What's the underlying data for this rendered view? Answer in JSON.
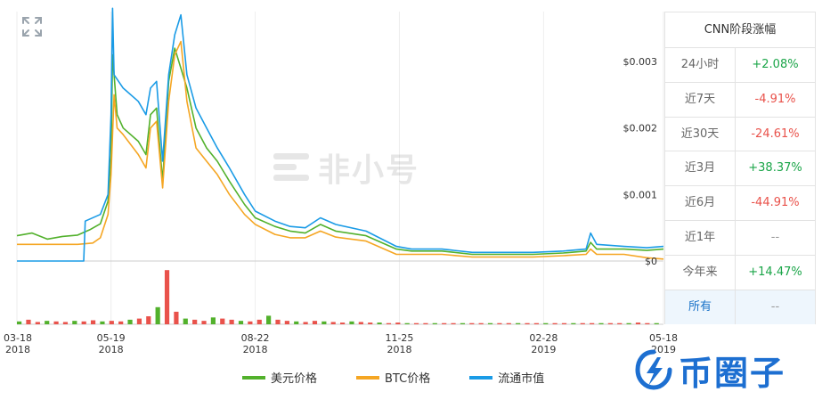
{
  "chart_data": {
    "type": "line",
    "y_ticks": [
      "$0.003",
      "$0.002",
      "$0.001",
      "$0"
    ],
    "y_tick_values": [
      0.003,
      0.002,
      0.001,
      0
    ],
    "ylim": [
      0,
      0.00375
    ],
    "xlim_days": [
      0,
      426
    ],
    "x_ticks": [
      {
        "top": "03-18",
        "bottom": "2018",
        "day": 0
      },
      {
        "top": "05-19",
        "bottom": "2018",
        "day": 62
      },
      {
        "top": "08-22",
        "bottom": "2018",
        "day": 157
      },
      {
        "top": "11-25",
        "bottom": "2018",
        "day": 252
      },
      {
        "top": "02-28",
        "bottom": "2019",
        "day": 347
      },
      {
        "top": "05-18",
        "bottom": "2019",
        "day": 426
      }
    ],
    "series": [
      {
        "name": "美元价格",
        "color": "#52b12c",
        "points": [
          [
            0,
            0.00038
          ],
          [
            10,
            0.00042
          ],
          [
            20,
            0.00033
          ],
          [
            30,
            0.00037
          ],
          [
            40,
            0.00039
          ],
          [
            48,
            0.00047
          ],
          [
            55,
            0.00056
          ],
          [
            60,
            0.0009
          ],
          [
            62,
            0.0016
          ],
          [
            63,
            0.0031
          ],
          [
            66,
            0.0022
          ],
          [
            70,
            0.002
          ],
          [
            80,
            0.0018
          ],
          [
            85,
            0.0016
          ],
          [
            88,
            0.0022
          ],
          [
            92,
            0.0023
          ],
          [
            96,
            0.0012
          ],
          [
            100,
            0.0027
          ],
          [
            104,
            0.0032
          ],
          [
            108,
            0.0029
          ],
          [
            112,
            0.0026
          ],
          [
            118,
            0.002
          ],
          [
            125,
            0.0017
          ],
          [
            132,
            0.0015
          ],
          [
            140,
            0.0012
          ],
          [
            150,
            0.00085
          ],
          [
            157,
            0.00065
          ],
          [
            170,
            0.00052
          ],
          [
            180,
            0.00045
          ],
          [
            190,
            0.00042
          ],
          [
            200,
            0.00055
          ],
          [
            210,
            0.00045
          ],
          [
            230,
            0.00038
          ],
          [
            250,
            0.00018
          ],
          [
            260,
            0.00015
          ],
          [
            280,
            0.00015
          ],
          [
            300,
            0.0001
          ],
          [
            320,
            0.0001
          ],
          [
            340,
            0.0001
          ],
          [
            360,
            0.00012
          ],
          [
            375,
            0.00015
          ],
          [
            378,
            0.00028
          ],
          [
            382,
            0.00018
          ],
          [
            400,
            0.00018
          ],
          [
            415,
            0.00016
          ],
          [
            426,
            0.00018
          ]
        ]
      },
      {
        "name": "BTC价格",
        "color": "#f5a623",
        "points": [
          [
            0,
            0.00025
          ],
          [
            20,
            0.00025
          ],
          [
            40,
            0.00025
          ],
          [
            50,
            0.00027
          ],
          [
            55,
            0.00035
          ],
          [
            60,
            0.0007
          ],
          [
            62,
            0.0013
          ],
          [
            64,
            0.0025
          ],
          [
            66,
            0.002
          ],
          [
            70,
            0.0019
          ],
          [
            80,
            0.0016
          ],
          [
            85,
            0.0014
          ],
          [
            88,
            0.002
          ],
          [
            92,
            0.0021
          ],
          [
            96,
            0.0011
          ],
          [
            100,
            0.0024
          ],
          [
            104,
            0.0031
          ],
          [
            108,
            0.0033
          ],
          [
            112,
            0.0024
          ],
          [
            118,
            0.0017
          ],
          [
            125,
            0.0015
          ],
          [
            132,
            0.0013
          ],
          [
            140,
            0.001
          ],
          [
            150,
            0.0007
          ],
          [
            157,
            0.00055
          ],
          [
            170,
            0.0004
          ],
          [
            180,
            0.00035
          ],
          [
            190,
            0.00035
          ],
          [
            200,
            0.00045
          ],
          [
            210,
            0.00036
          ],
          [
            230,
            0.0003
          ],
          [
            250,
            0.0001
          ],
          [
            260,
            0.0001
          ],
          [
            280,
            0.0001
          ],
          [
            300,
            6e-05
          ],
          [
            320,
            6e-05
          ],
          [
            340,
            6e-05
          ],
          [
            360,
            8e-05
          ],
          [
            375,
            0.0001
          ],
          [
            378,
            0.00018
          ],
          [
            382,
            0.0001
          ],
          [
            400,
            0.0001
          ],
          [
            415,
            5e-05
          ],
          [
            426,
            3e-05
          ]
        ]
      },
      {
        "name": "流通市值",
        "color": "#1a9be6",
        "points": [
          [
            0,
            0.0
          ],
          [
            20,
            0.0
          ],
          [
            40,
            0.0
          ],
          [
            44,
            0.0
          ],
          [
            45,
            0.0006
          ],
          [
            55,
            0.0007
          ],
          [
            60,
            0.001
          ],
          [
            62,
            0.0022
          ],
          [
            63,
            0.0038
          ],
          [
            64,
            0.0028
          ],
          [
            70,
            0.0026
          ],
          [
            80,
            0.0024
          ],
          [
            85,
            0.0022
          ],
          [
            88,
            0.0026
          ],
          [
            92,
            0.0027
          ],
          [
            96,
            0.0015
          ],
          [
            100,
            0.0028
          ],
          [
            104,
            0.0034
          ],
          [
            108,
            0.0037
          ],
          [
            112,
            0.0028
          ],
          [
            118,
            0.0023
          ],
          [
            125,
            0.002
          ],
          [
            132,
            0.0017
          ],
          [
            140,
            0.0014
          ],
          [
            150,
            0.001
          ],
          [
            157,
            0.00075
          ],
          [
            170,
            0.0006
          ],
          [
            180,
            0.00052
          ],
          [
            190,
            0.0005
          ],
          [
            200,
            0.00065
          ],
          [
            210,
            0.00055
          ],
          [
            230,
            0.00045
          ],
          [
            250,
            0.00022
          ],
          [
            260,
            0.00018
          ],
          [
            280,
            0.00018
          ],
          [
            300,
            0.00013
          ],
          [
            320,
            0.00013
          ],
          [
            340,
            0.00013
          ],
          [
            360,
            0.00015
          ],
          [
            375,
            0.00018
          ],
          [
            378,
            0.00042
          ],
          [
            382,
            0.00025
          ],
          [
            400,
            0.00022
          ],
          [
            415,
            0.0002
          ],
          [
            426,
            0.00022
          ]
        ]
      }
    ],
    "volume_bars": [
      0.05,
      0.08,
      0.04,
      0.06,
      0.05,
      0.04,
      0.06,
      0.05,
      0.07,
      0.05,
      0.06,
      0.05,
      0.08,
      0.1,
      0.14,
      0.3,
      0.95,
      0.22,
      0.1,
      0.08,
      0.06,
      0.12,
      0.1,
      0.08,
      0.06,
      0.05,
      0.08,
      0.15,
      0.08,
      0.06,
      0.05,
      0.04,
      0.06,
      0.05,
      0.04,
      0.03,
      0.05,
      0.04,
      0.03,
      0.03,
      0.02,
      0.03,
      0.02,
      0.02,
      0.02,
      0.02,
      0.02,
      0.02,
      0.02,
      0.02,
      0.02,
      0.02,
      0.02,
      0.02,
      0.02,
      0.02,
      0.02,
      0.02,
      0.02,
      0.02,
      0.02,
      0.02,
      0.02,
      0.02,
      0.02,
      0.02,
      0.02,
      0.03,
      0.02,
      0.02
    ],
    "legend_position": "bottom"
  },
  "stats": {
    "title": "CNN阶段涨幅",
    "rows": [
      {
        "label": "24小时",
        "value": "+2.08%",
        "tone": "pos"
      },
      {
        "label": "近7天",
        "value": "-4.91%",
        "tone": "neg"
      },
      {
        "label": "近30天",
        "value": "-24.61%",
        "tone": "neg"
      },
      {
        "label": "近3月",
        "value": "+38.37%",
        "tone": "pos"
      },
      {
        "label": "近6月",
        "value": "-44.91%",
        "tone": "neg"
      },
      {
        "label": "近1年",
        "value": "--",
        "tone": "neu"
      },
      {
        "label": "今年来",
        "value": "+14.47%",
        "tone": "pos"
      },
      {
        "label": "所有",
        "value": "--",
        "tone": "neu",
        "active": true
      }
    ]
  },
  "legend": [
    {
      "label": "美元价格",
      "color": "#52b12c"
    },
    {
      "label": "BTC价格",
      "color": "#f5a623"
    },
    {
      "label": "流通市值",
      "color": "#1a9be6"
    }
  ],
  "watermark": {
    "text": "非小号"
  },
  "logo": {
    "text": "币圈子"
  },
  "colors": {
    "grid": "#eeeeee",
    "axis": "#cccccc",
    "vol_up": "#52b12c",
    "vol_down": "#e9524b"
  }
}
